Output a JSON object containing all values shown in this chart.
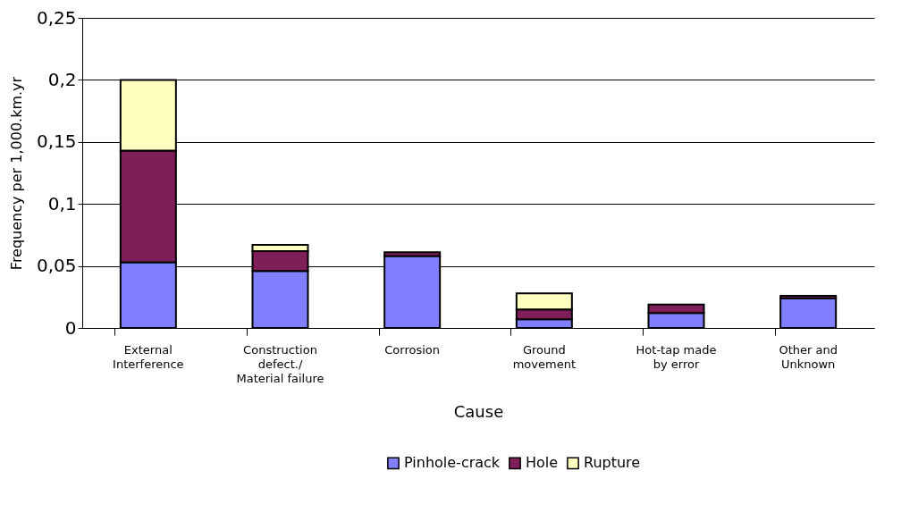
{
  "chart_data": {
    "type": "bar",
    "stacked": true,
    "xlabel": "Cause",
    "ylabel": "Frequency per 1,000.km.yr",
    "categories": [
      "External\nInterference",
      "Construction\ndefect./\nMaterial failure",
      "Corrosion",
      "Ground\nmovement",
      "Hot-tap made\nby error",
      "Other and\nUnknown"
    ],
    "series": [
      {
        "name": "Pinhole-crack",
        "color": "#8080ff",
        "values": [
          0.053,
          0.046,
          0.058,
          0.007,
          0.012,
          0.024
        ]
      },
      {
        "name": "Hole",
        "color": "#7f1f5a",
        "values": [
          0.09,
          0.016,
          0.003,
          0.008,
          0.007,
          0.002
        ]
      },
      {
        "name": "Rupture",
        "color": "#ffffc0",
        "values": [
          0.057,
          0.005,
          null,
          0.013,
          null,
          null
        ]
      }
    ],
    "ylim": [
      0,
      0.25
    ],
    "yticks": [
      {
        "value": 0,
        "label": "0"
      },
      {
        "value": 0.05,
        "label": "0,05"
      },
      {
        "value": 0.1,
        "label": "0,1"
      },
      {
        "value": 0.15,
        "label": "0,15"
      },
      {
        "value": 0.2,
        "label": "0,2"
      },
      {
        "value": 0.25,
        "label": "0,25"
      }
    ],
    "grid": "y",
    "legend": "bottom"
  }
}
